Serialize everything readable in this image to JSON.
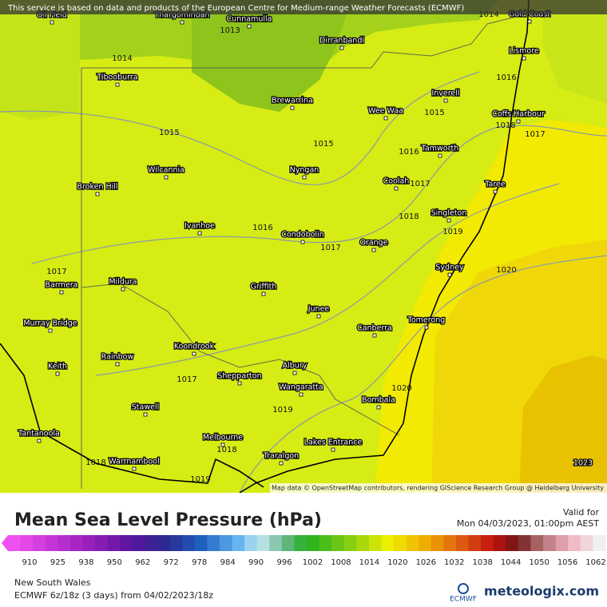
{
  "header": {
    "notice": "This service is based on data and products of the European Centre for Medium-range Weather Forecasts (ECMWF)"
  },
  "map": {
    "places": [
      "Oil Field",
      "Thargomindah",
      "Cunnamulla",
      "Dirranbandi",
      "Gold Coast",
      "Lismore",
      "Tibooburra",
      "Brewarrina",
      "Inverell",
      "Wee Waa",
      "Coffs Harbour",
      "Tamworth",
      "Wilcannia",
      "Nyngan",
      "Broken Hill",
      "Coolah",
      "Taree",
      "Singleton",
      "Ivanhoe",
      "Condobolin",
      "Orange",
      "Sydney",
      "Barmera",
      "Mildura",
      "Griffith",
      "Murray Bridge",
      "Junee",
      "Canberra",
      "Tomerong",
      "Koondrook",
      "Rainbow",
      "Keith",
      "Albury",
      "Shepparton",
      "Wangaratta",
      "Bombala",
      "Stawell",
      "Tantanoola",
      "Melbourne",
      "Lakes Entrance",
      "Traralgon",
      "Warrnambool"
    ],
    "isobars": [
      1013,
      1014,
      1014,
      1016,
      1015,
      1018,
      1017,
      1015,
      1015,
      1016,
      1017,
      1018,
      1019,
      1016,
      1017,
      1020,
      1017,
      1017,
      1019,
      1020,
      1018,
      1018,
      1019,
      1023
    ],
    "attribution": "Map data © OpenStreetMap contributors, rendering GIScience Research Group @ Heidelberg University"
  },
  "legend": {
    "title": "Mean Sea Level Pressure (hPa)",
    "valid_label": "Valid for",
    "valid_time": "Mon 04/03/2023, 01:00pm AEST",
    "ticks": [
      910,
      925,
      938,
      950,
      962,
      972,
      978,
      984,
      990,
      996,
      1002,
      1008,
      1014,
      1020,
      1026,
      1032,
      1038,
      1044,
      1050,
      1056,
      1062
    ]
  },
  "footer": {
    "region": "New South Wales",
    "model": "ECMWF 6z/18z (3 days)  from  04/02/2023/18z",
    "logo_left": "ECMWF",
    "logo_right": "meteologix.com"
  }
}
